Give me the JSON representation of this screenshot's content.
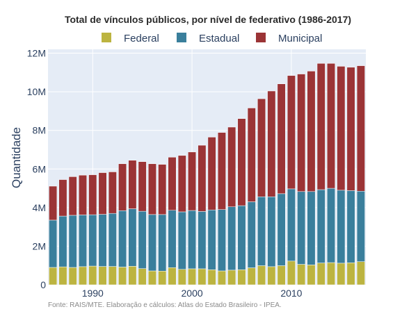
{
  "chart_data": {
    "type": "bar",
    "stacked": true,
    "title": "Total de vínculos públicos, por nível de federativo (1986-2017)",
    "ylabel": "Quantidade",
    "xlabel": "",
    "source_note": "Fonte: RAIS/MTE. Elaboração e cálculos: Atlas do Estado Brasileiro - IPEA.",
    "x_ticks": [
      {
        "value": 1990,
        "label": "1990"
      },
      {
        "value": 2000,
        "label": "2000"
      },
      {
        "value": 2010,
        "label": "2010"
      }
    ],
    "y_ticks": [
      {
        "value": 0,
        "label": "0"
      },
      {
        "value": 2000000,
        "label": "2M"
      },
      {
        "value": 4000000,
        "label": "4M"
      },
      {
        "value": 6000000,
        "label": "6M"
      },
      {
        "value": 8000000,
        "label": "8M"
      },
      {
        "value": 10000000,
        "label": "10M"
      },
      {
        "value": 12000000,
        "label": "12M"
      }
    ],
    "ylim": [
      0,
      12200000
    ],
    "xlim": [
      1985.5,
      2017.5
    ],
    "legend_position": "top",
    "grid": true,
    "categories": [
      1986,
      1987,
      1988,
      1989,
      1990,
      1991,
      1992,
      1993,
      1994,
      1995,
      1996,
      1997,
      1998,
      1999,
      2000,
      2001,
      2002,
      2003,
      2004,
      2005,
      2006,
      2007,
      2008,
      2009,
      2010,
      2011,
      2012,
      2013,
      2014,
      2015,
      2016,
      2017
    ],
    "series": [
      {
        "name": "Federal",
        "color": "#bcb440",
        "values": [
          900000,
          930000,
          900000,
          940000,
          970000,
          950000,
          950000,
          920000,
          960000,
          840000,
          720000,
          710000,
          890000,
          800000,
          830000,
          830000,
          780000,
          720000,
          760000,
          780000,
          880000,
          990000,
          940000,
          990000,
          1230000,
          1060000,
          1030000,
          1130000,
          1150000,
          1120000,
          1140000,
          1200000
        ]
      },
      {
        "name": "Estadual",
        "color": "#3a7f9c",
        "values": [
          2450000,
          2630000,
          2700000,
          2680000,
          2660000,
          2700000,
          2750000,
          2920000,
          2980000,
          2970000,
          2920000,
          2930000,
          2970000,
          2980000,
          3020000,
          2970000,
          3100000,
          3180000,
          3280000,
          3320000,
          3420000,
          3570000,
          3620000,
          3730000,
          3740000,
          3770000,
          3800000,
          3800000,
          3850000,
          3780000,
          3740000,
          3650000
        ]
      },
      {
        "name": "Municipal",
        "color": "#9b3436",
        "values": [
          1760000,
          1890000,
          2000000,
          2060000,
          2070000,
          2160000,
          2150000,
          2430000,
          2510000,
          2570000,
          2630000,
          2600000,
          2750000,
          2920000,
          3030000,
          3430000,
          3770000,
          3990000,
          4130000,
          4510000,
          4860000,
          5080000,
          5480000,
          5690000,
          5870000,
          6090000,
          6240000,
          6540000,
          6470000,
          6420000,
          6390000,
          6500000
        ]
      }
    ]
  }
}
